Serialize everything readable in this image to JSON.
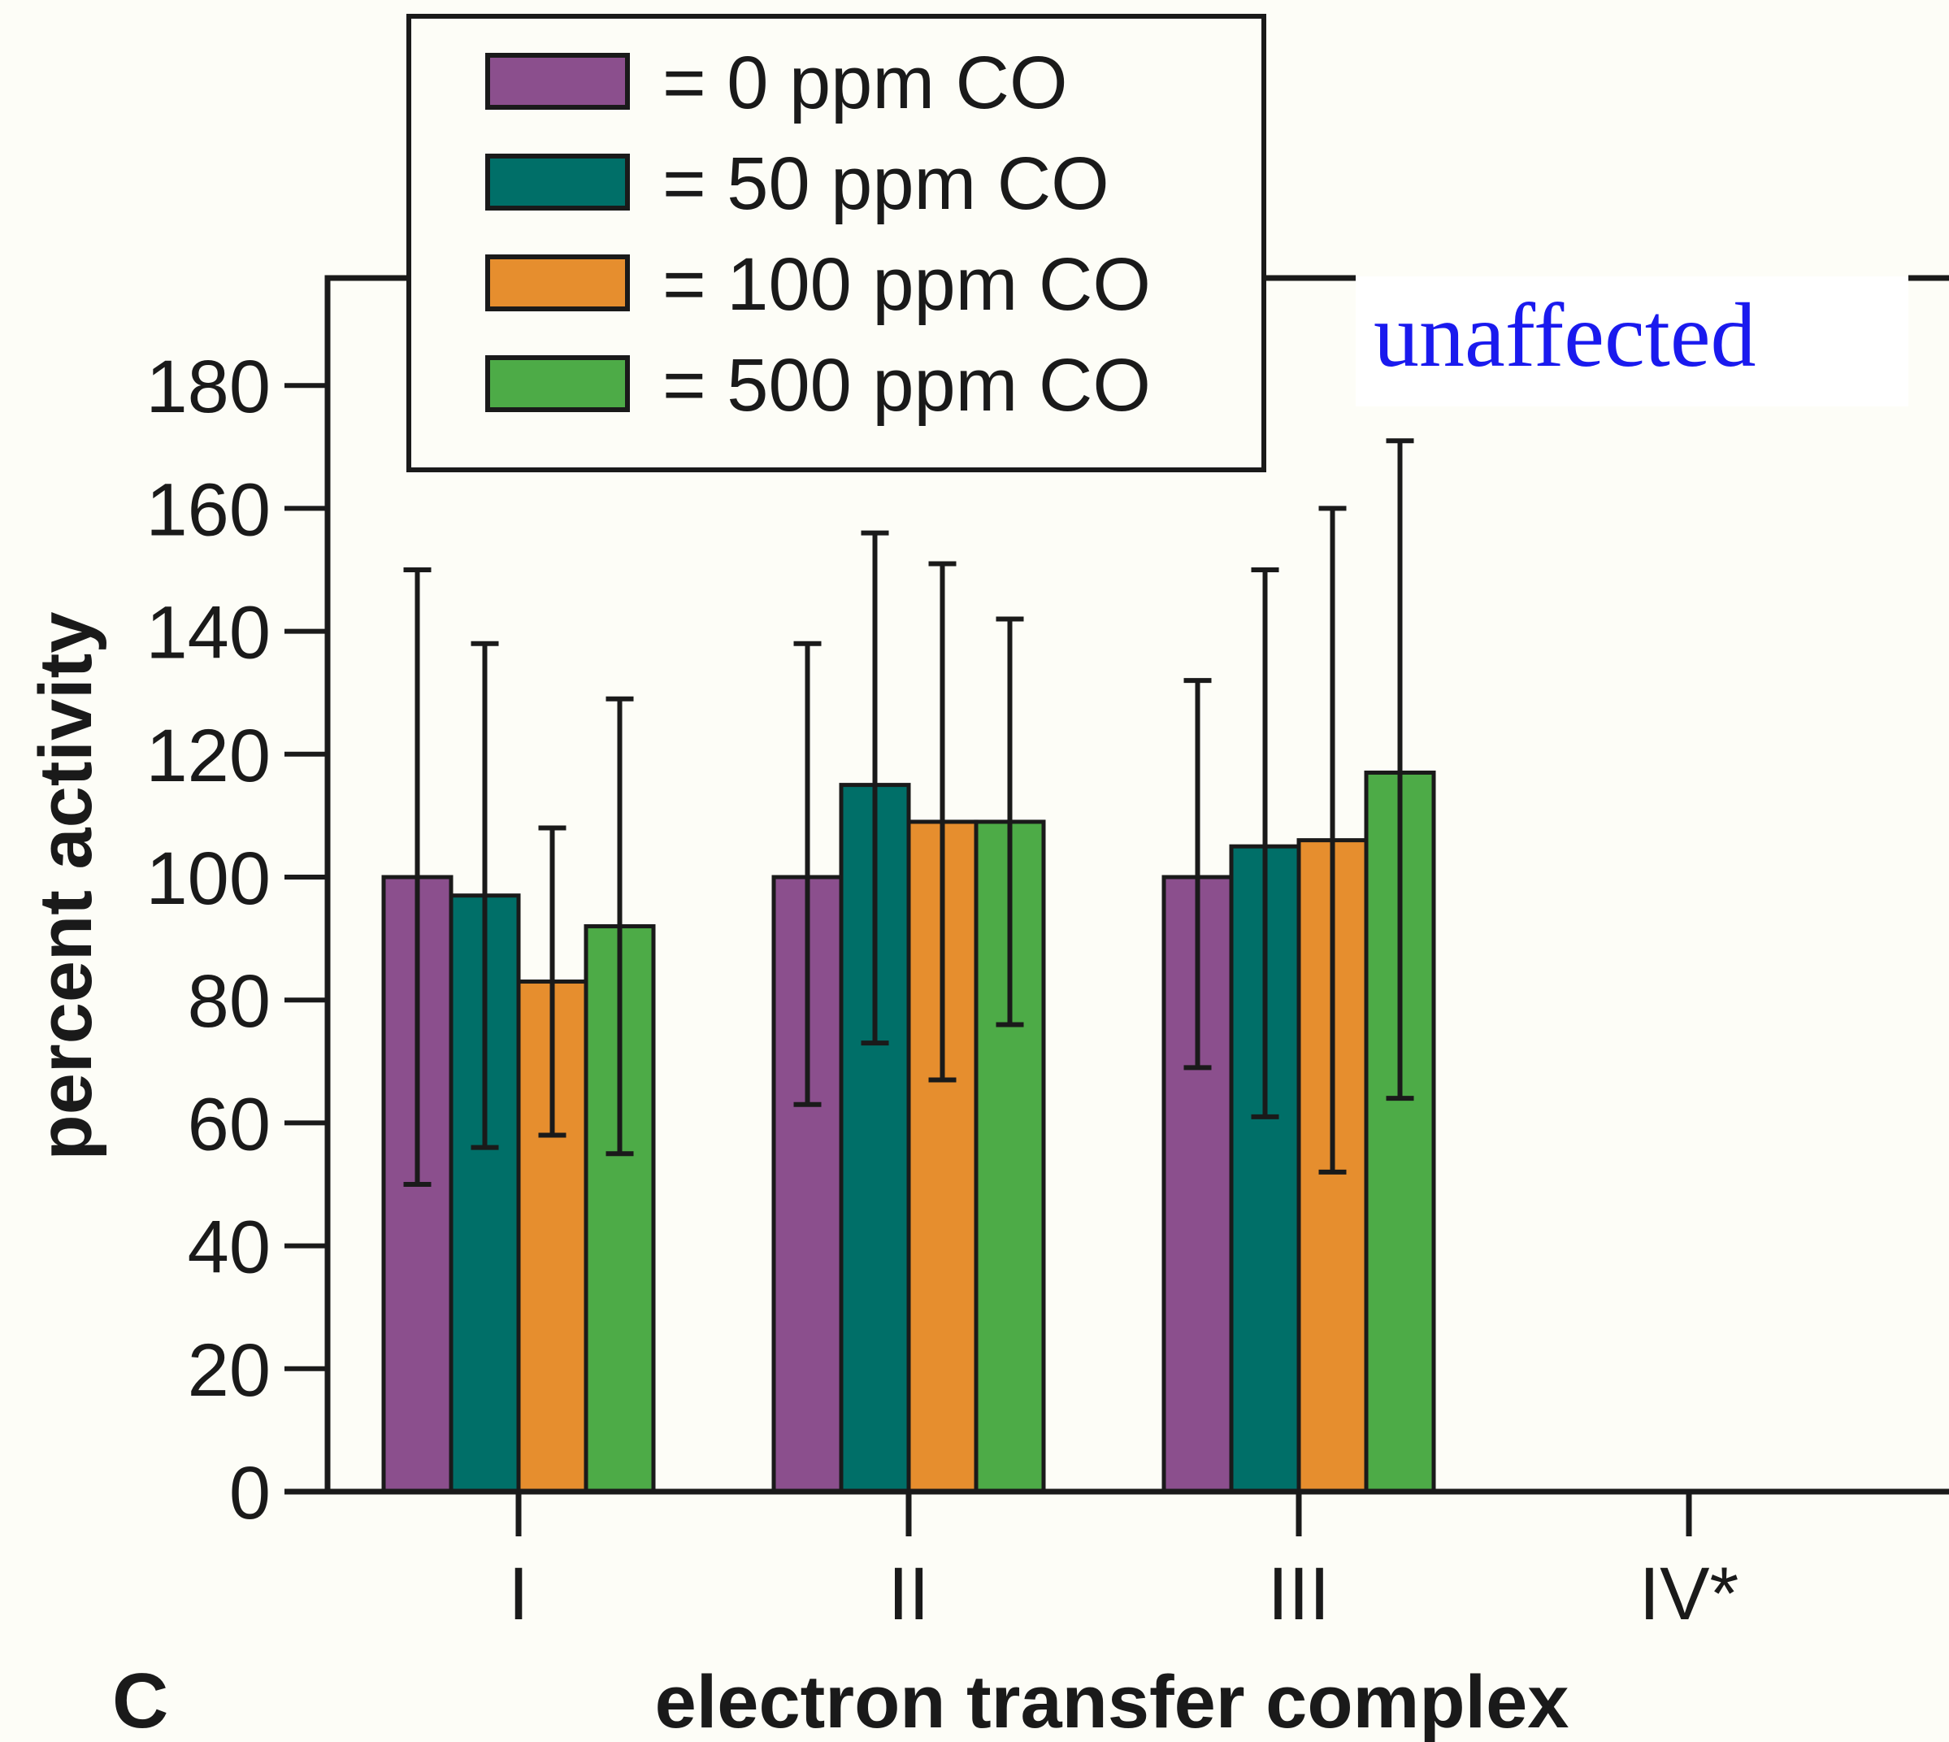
{
  "chart_data": {
    "type": "bar",
    "title": "",
    "panel_label": "C",
    "annotation": "unaffected",
    "xlabel": "electron transfer complex",
    "ylabel": "percent activity",
    "ylim": [
      0,
      200
    ],
    "yticks": [
      0,
      20,
      40,
      60,
      80,
      100,
      120,
      140,
      160,
      180
    ],
    "grid": false,
    "legend_position": "top-left",
    "categories": [
      "I",
      "II",
      "III",
      "IV*"
    ],
    "series": [
      {
        "name": "= 0 ppm CO",
        "color": "#8b4f8d",
        "values": [
          100,
          100,
          100,
          0
        ],
        "err_low": [
          50,
          63,
          69,
          0
        ],
        "err_high": [
          150,
          138,
          132,
          0
        ]
      },
      {
        "name": "= 50 ppm CO",
        "color": "#006f68",
        "values": [
          97,
          115,
          105,
          0
        ],
        "err_low": [
          56,
          73,
          61,
          0
        ],
        "err_high": [
          138,
          156,
          150,
          0
        ]
      },
      {
        "name": "= 100 ppm CO",
        "color": "#e68e2e",
        "values": [
          83,
          109,
          106,
          0
        ],
        "err_low": [
          58,
          67,
          52,
          0
        ],
        "err_high": [
          108,
          151,
          160,
          0
        ]
      },
      {
        "name": "= 500 ppm CO",
        "color": "#4dab47",
        "values": [
          92,
          109,
          117,
          0
        ],
        "err_low": [
          55,
          76,
          64,
          0
        ],
        "err_high": [
          129,
          142,
          171,
          0
        ]
      }
    ]
  }
}
